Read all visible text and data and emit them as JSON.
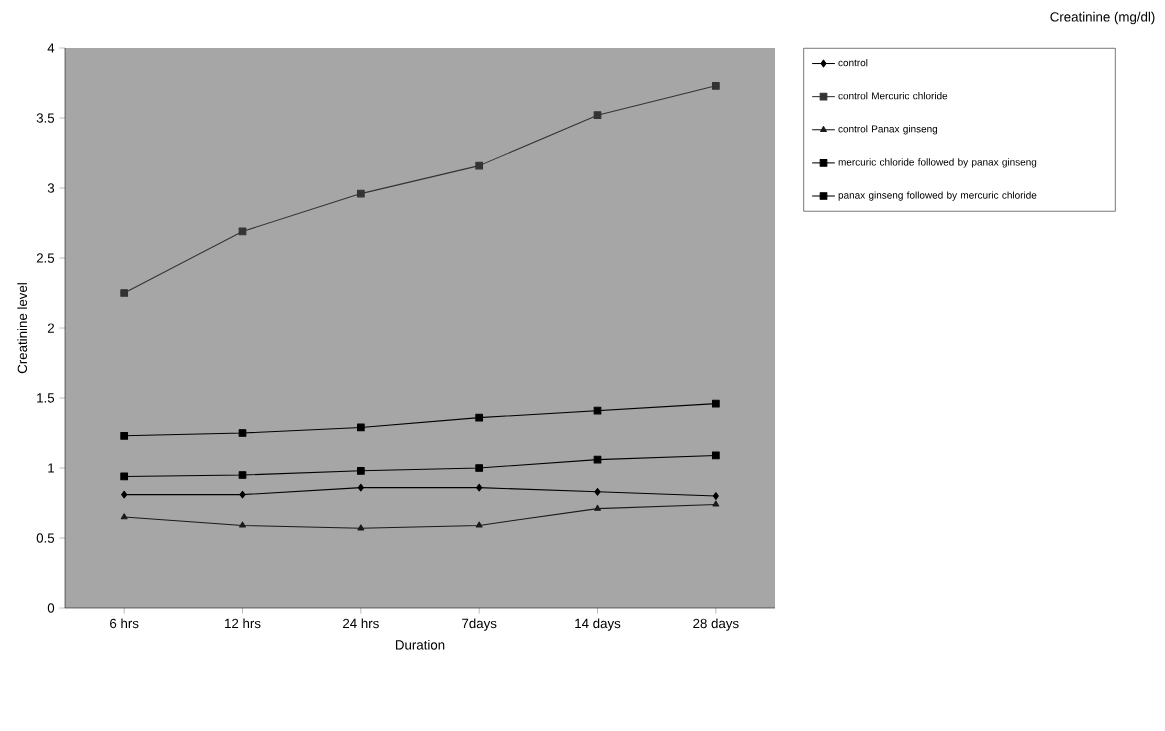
{
  "chart_data": {
    "type": "line",
    "title": "Creatinine (mg/dl)",
    "xlabel": "Duration",
    "ylabel": "Creatinine level",
    "categories": [
      "6 hrs",
      "12 hrs",
      "24 hrs",
      "7days",
      "14 days",
      "28 days"
    ],
    "series": [
      {
        "name": "control",
        "color": "#000000",
        "marker": "diamond",
        "values": [
          0.81,
          0.81,
          0.86,
          0.86,
          0.83,
          0.8
        ]
      },
      {
        "name": "control Mercuric chloride",
        "color": "#333333",
        "marker": "square",
        "values": [
          2.25,
          2.69,
          2.96,
          3.16,
          3.52,
          3.73
        ]
      },
      {
        "name": "control Panax ginseng",
        "color": "#1a1a1a",
        "marker": "triangle",
        "values": [
          0.65,
          0.59,
          0.57,
          0.59,
          0.71,
          0.74
        ]
      },
      {
        "name": "mercuric chloride followed by panax ginseng",
        "color": "#000000",
        "marker": "square",
        "values": [
          1.23,
          1.25,
          1.29,
          1.36,
          1.41,
          1.46
        ]
      },
      {
        "name": "panax ginseng followed by mercuric chloride",
        "color": "#000000",
        "marker": "square",
        "values": [
          0.94,
          0.95,
          0.98,
          1.0,
          1.06,
          1.09
        ]
      }
    ],
    "ylim": [
      0,
      4
    ],
    "yticks": [
      0,
      0.5,
      1,
      1.5,
      2,
      2.5,
      3,
      3.5,
      4
    ],
    "grid": false,
    "legend": "right",
    "line_style": "solid"
  }
}
